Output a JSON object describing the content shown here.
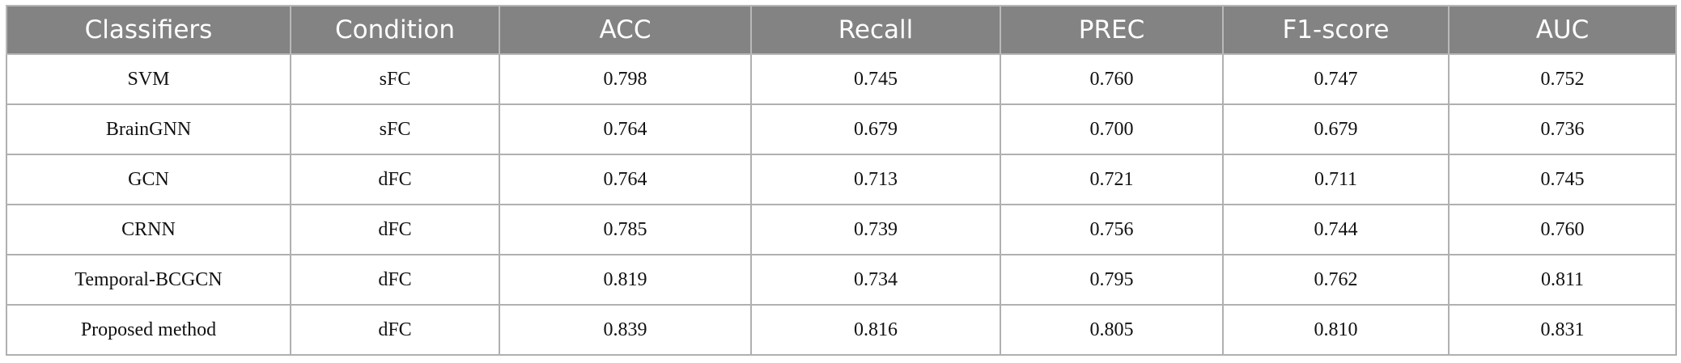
{
  "table": {
    "header": [
      "Classifiers",
      "Condition",
      "ACC",
      "Recall",
      "PREC",
      "F1-score",
      "AUC"
    ],
    "rows": [
      [
        "SVM",
        "sFC",
        "0.798",
        "0.745",
        "0.760",
        "0.747",
        "0.752"
      ],
      [
        "BrainGNN",
        "sFC",
        "0.764",
        "0.679",
        "0.700",
        "0.679",
        "0.736"
      ],
      [
        "GCN",
        "dFC",
        "0.764",
        "0.713",
        "0.721",
        "0.711",
        "0.745"
      ],
      [
        "CRNN",
        "dFC",
        "0.785",
        "0.739",
        "0.756",
        "0.744",
        "0.760"
      ],
      [
        "Temporal-BCGCN",
        "dFC",
        "0.819",
        "0.734",
        "0.795",
        "0.762",
        "0.811"
      ],
      [
        "Proposed method",
        "dFC",
        "0.839",
        "0.816",
        "0.805",
        "0.810",
        "0.831"
      ]
    ]
  }
}
